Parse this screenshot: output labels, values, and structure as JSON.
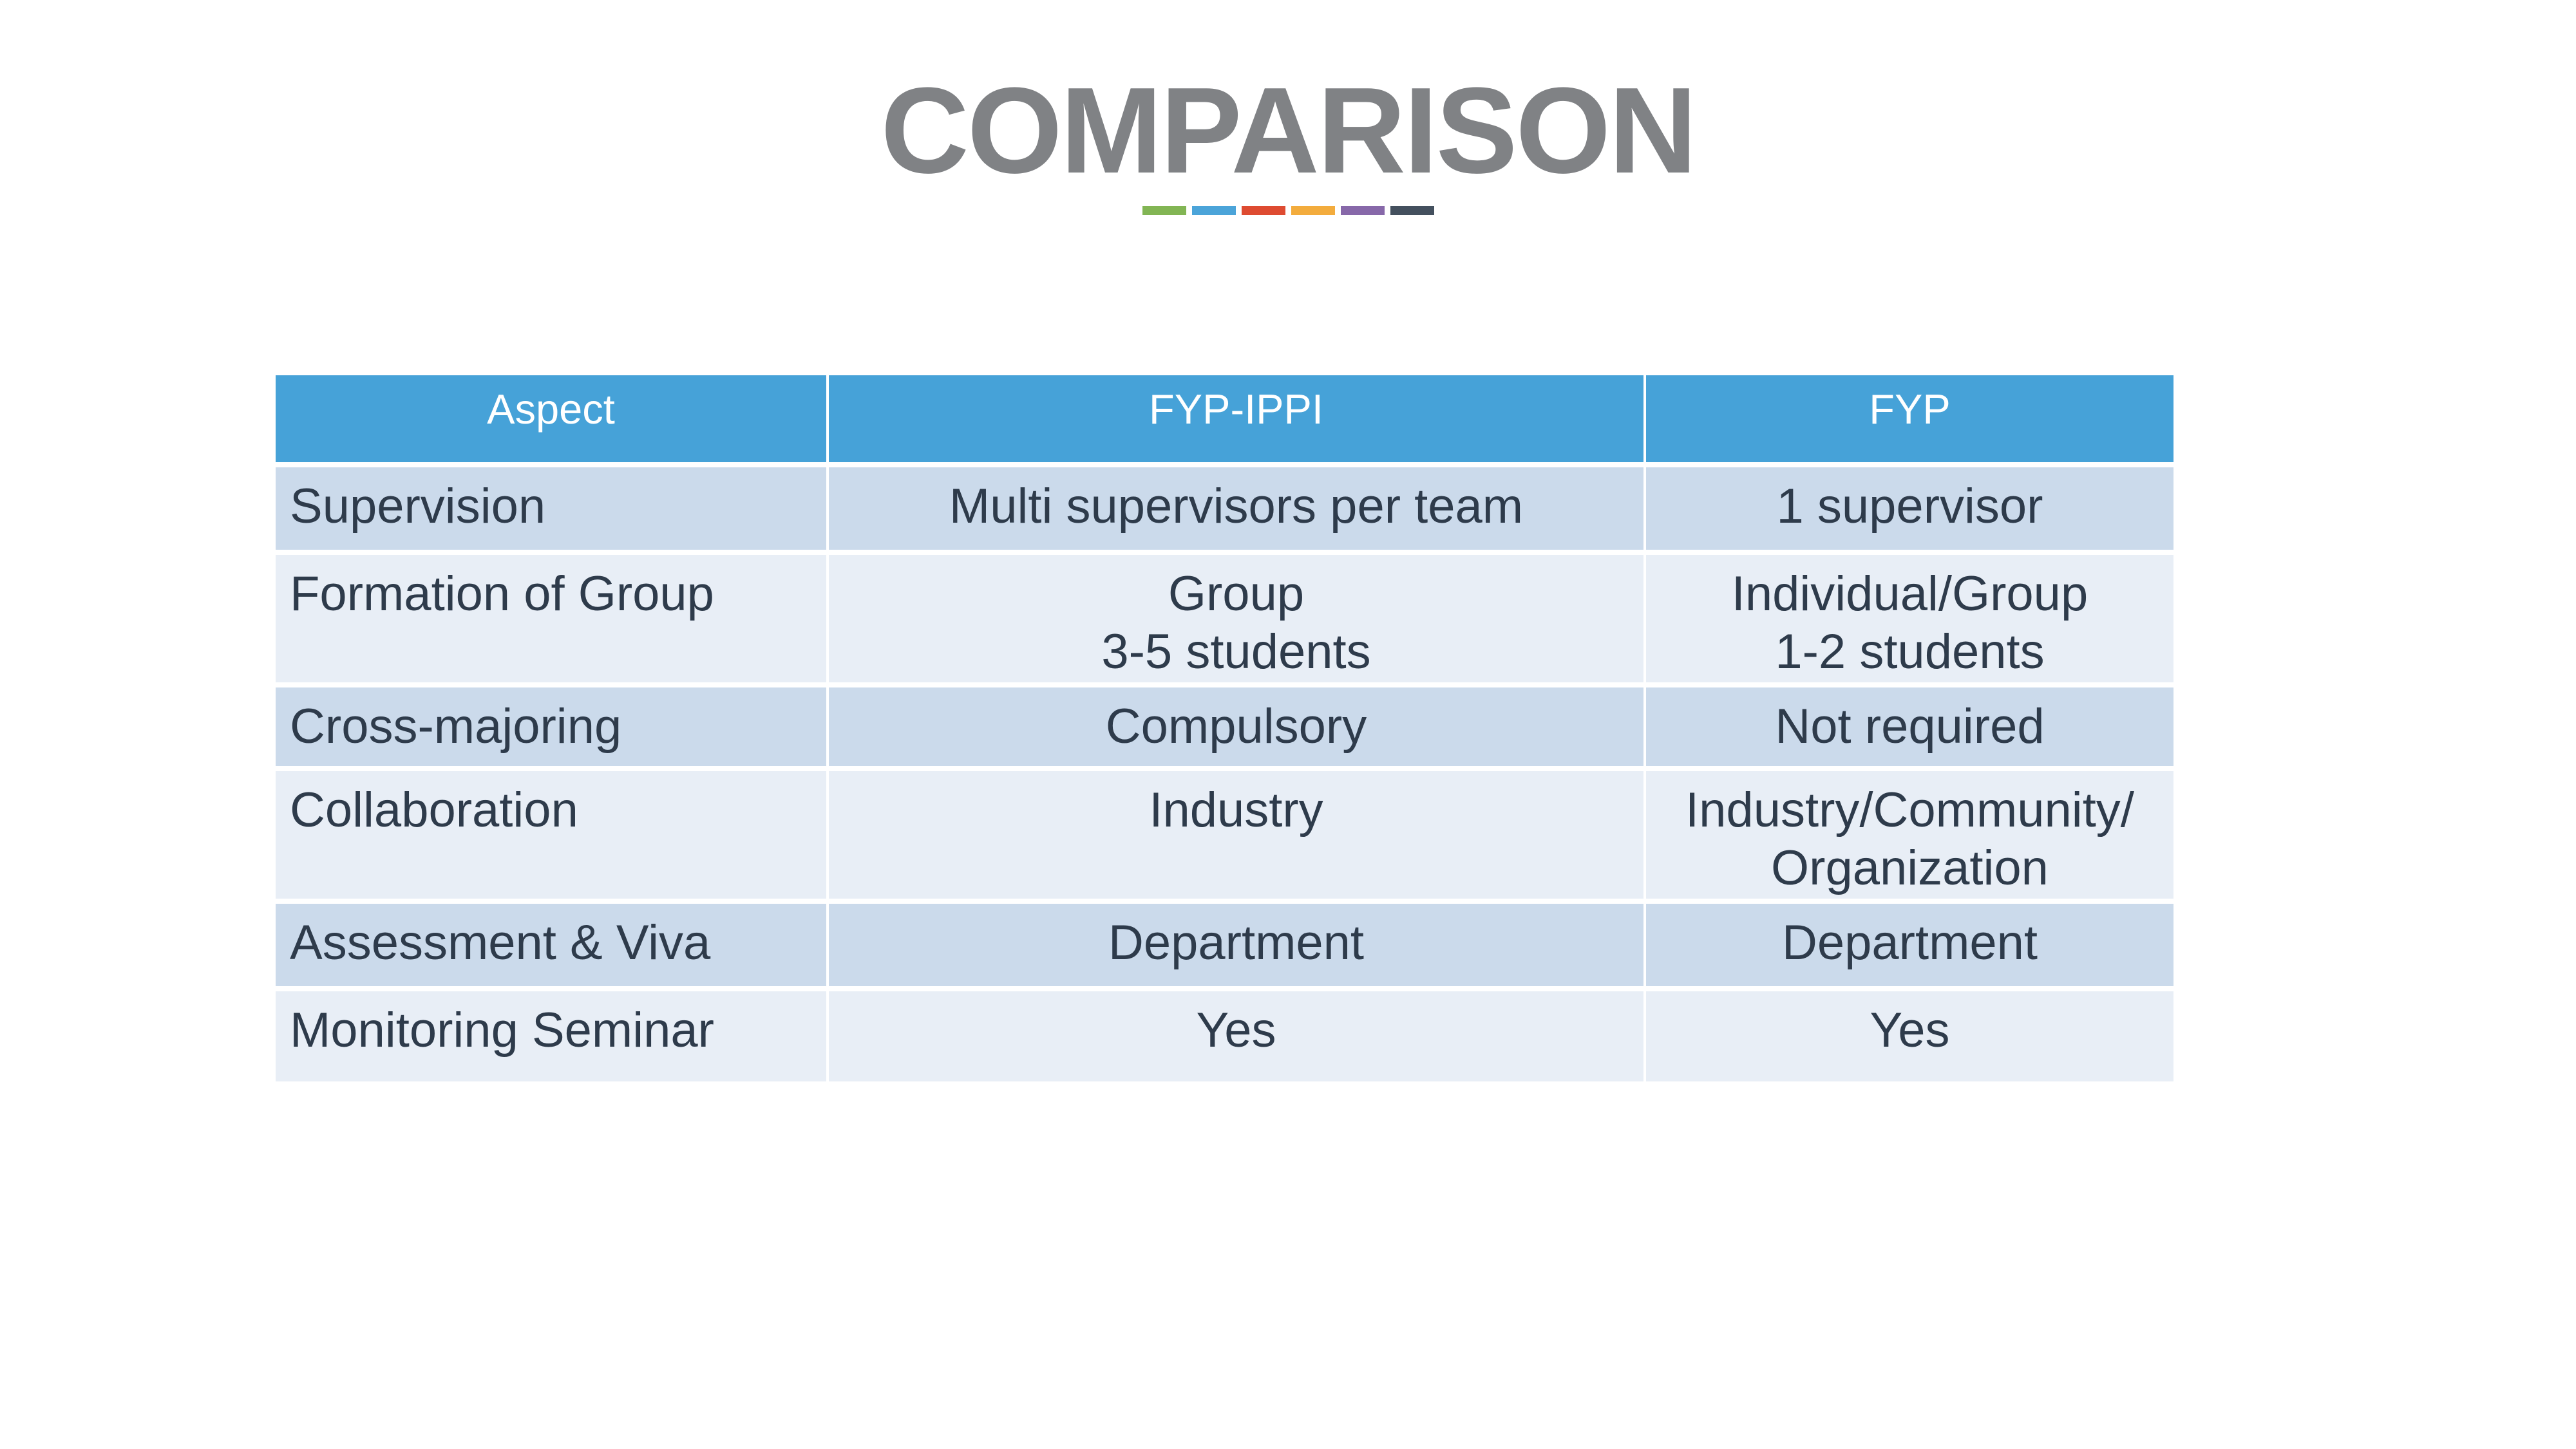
{
  "slide": {
    "title": "COMPARISON",
    "accent_bar_colors": [
      "#82B554",
      "#4BA4D9",
      "#DE4B31",
      "#F3AC3D",
      "#8768A9",
      "#44505E"
    ]
  },
  "colors": {
    "slide_bg": "#FFFFFF",
    "title": "#808285",
    "header_bg": "#46A2D8",
    "header_text": "#FFFFFF",
    "band_dark": "#CBDAEB",
    "band_light": "#E8EEF6",
    "body_text": "#2E3B4B"
  },
  "table": {
    "columns": [
      {
        "label": "Aspect"
      },
      {
        "label": "FYP-IPPI"
      },
      {
        "label": "FYP"
      }
    ],
    "rows": [
      {
        "aspect": "Supervision",
        "fyp_ippi": [
          "Multi supervisors per team"
        ],
        "fyp": [
          "1 supervisor"
        ]
      },
      {
        "aspect": "Formation of Group",
        "fyp_ippi": [
          "Group",
          "3-5 students"
        ],
        "fyp": [
          "Individual/Group",
          "1-2 students"
        ]
      },
      {
        "aspect": "Cross-majoring",
        "fyp_ippi": [
          "Compulsory"
        ],
        "fyp": [
          "Not required"
        ]
      },
      {
        "aspect": "Collaboration",
        "fyp_ippi": [
          "Industry"
        ],
        "fyp": [
          "Industry/Community/",
          "Organization"
        ]
      },
      {
        "aspect": "Assessment & Viva",
        "fyp_ippi": [
          "Department"
        ],
        "fyp": [
          "Department"
        ]
      },
      {
        "aspect": "Monitoring Seminar",
        "fyp_ippi": [
          "Yes"
        ],
        "fyp": [
          "Yes"
        ]
      }
    ]
  }
}
